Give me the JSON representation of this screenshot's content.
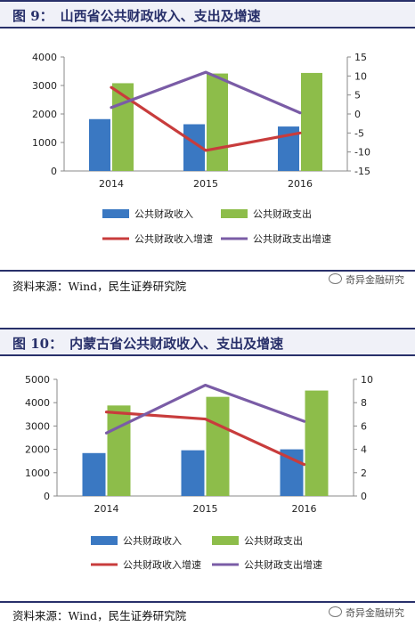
{
  "figures": [
    {
      "label": "图  9：",
      "title": "山西省公共财政收入、支出及增速",
      "source": "资料来源：Wind，民生证券研究院",
      "watermark": "奇异金融研究",
      "chart_data": {
        "type": "bar+line",
        "categories": [
          "2014",
          "2015",
          "2016"
        ],
        "left_axis": {
          "min": 0,
          "max": 4000,
          "ticks": [
            "0",
            "1000",
            "2000",
            "3000",
            "4000"
          ]
        },
        "right_axis": {
          "min": -15,
          "max": 15,
          "ticks": [
            "-15",
            "-10",
            "-5",
            "0",
            "5",
            "10",
            "15"
          ]
        },
        "bar_series": [
          {
            "name": "公共财政收入",
            "color": "#3a78c2",
            "values": [
              1820,
              1640,
              1560
            ]
          },
          {
            "name": "公共财政支出",
            "color": "#8dbd4a",
            "values": [
              3080,
              3420,
              3440
            ]
          }
        ],
        "line_series": [
          {
            "name": "公共财政收入增速",
            "color": "#c83c3c",
            "values": [
              7.0,
              -9.6,
              -5.0
            ]
          },
          {
            "name": "公共财政支出增速",
            "color": "#7a5ca6",
            "values": [
              1.7,
              11.0,
              0.3
            ]
          }
        ],
        "legend_position": "bottom",
        "grid": false
      }
    },
    {
      "label": "图  10：",
      "title": "内蒙古省公共财政收入、支出及增速",
      "source": "资料来源：Wind，民生证券研究院",
      "watermark": "奇异金融研究",
      "chart_data": {
        "type": "bar+line",
        "categories": [
          "2014",
          "2015",
          "2016"
        ],
        "left_axis": {
          "min": 0,
          "max": 5000,
          "ticks": [
            "0",
            "1000",
            "2000",
            "3000",
            "4000",
            "5000"
          ]
        },
        "right_axis": {
          "min": 0,
          "max": 10,
          "ticks": [
            "0",
            "2",
            "4",
            "6",
            "8",
            "10"
          ]
        },
        "bar_series": [
          {
            "name": "公共财政收入",
            "color": "#3a78c2",
            "values": [
              1840,
              1960,
              2000
            ]
          },
          {
            "name": "公共财政支出",
            "color": "#8dbd4a",
            "values": [
              3880,
              4250,
              4520
            ]
          }
        ],
        "line_series": [
          {
            "name": "公共财政收入增速",
            "color": "#c83c3c",
            "values": [
              7.2,
              6.6,
              2.7
            ]
          },
          {
            "name": "公共财政支出增速",
            "color": "#7a5ca6",
            "values": [
              5.4,
              9.5,
              6.4
            ]
          }
        ],
        "legend_position": "bottom",
        "grid": false
      }
    }
  ]
}
